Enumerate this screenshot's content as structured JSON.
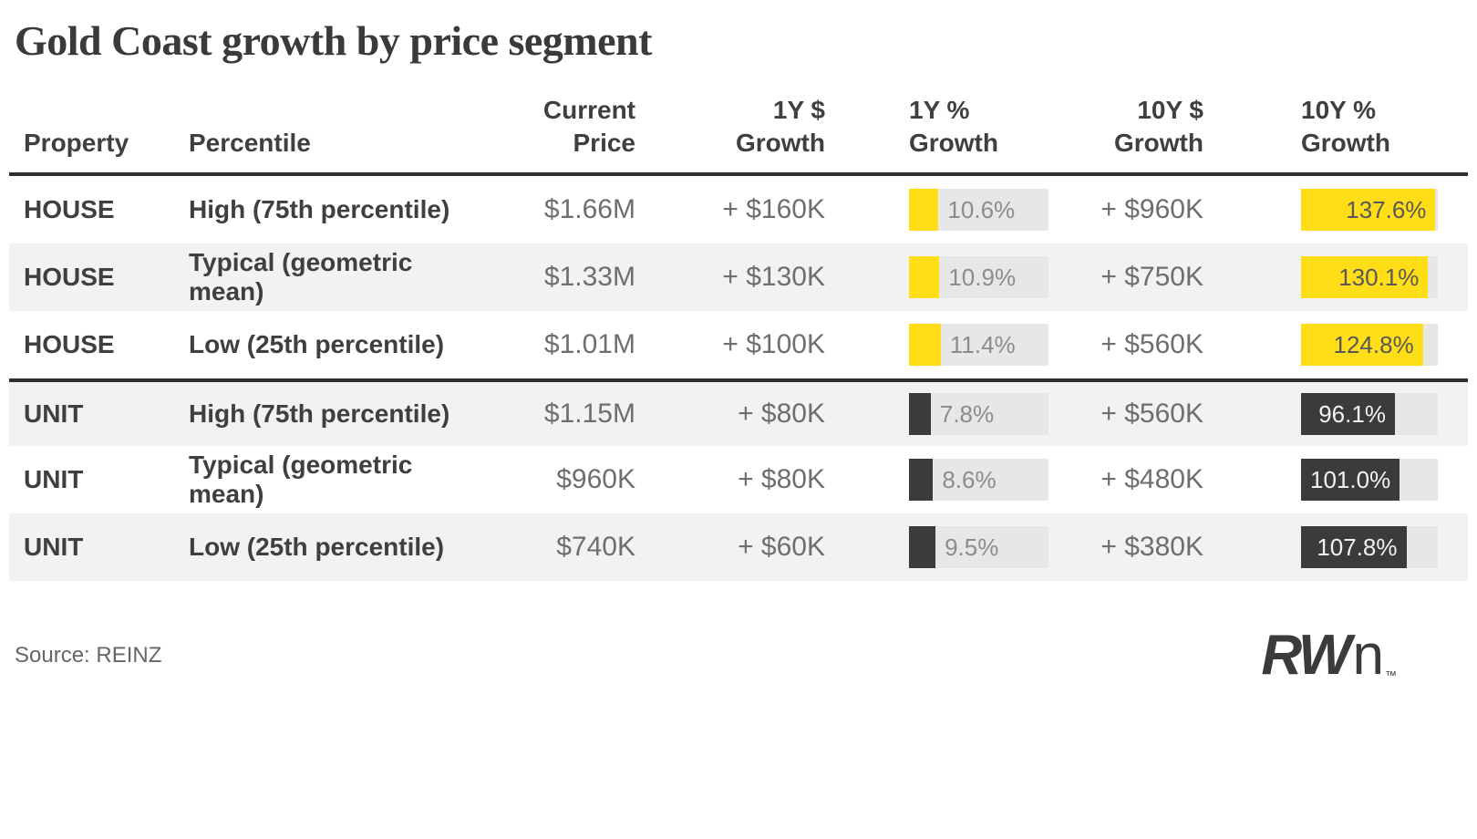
{
  "title": "Gold Coast growth by price segment",
  "source": "Source: REINZ",
  "logo": {
    "bold": "RW",
    "light": "n",
    "tm": "™"
  },
  "colors": {
    "house_bar": "#ffde17",
    "unit_bar": "#3b3b3c",
    "bar_track": "#e7e7e7",
    "row_shade": "#f2f2f2",
    "rule": "#2e2e2e"
  },
  "table": {
    "headers": [
      {
        "line1": "",
        "line2": "Property"
      },
      {
        "line1": "",
        "line2": "Percentile"
      },
      {
        "line1": "Current",
        "line2": "Price"
      },
      {
        "line1": "1Y $",
        "line2": "Growth"
      },
      {
        "line1": "1Y %",
        "line2": "Growth"
      },
      {
        "line1": "10Y $",
        "line2": "Growth"
      },
      {
        "line1": "10Y %",
        "line2": "Growth"
      }
    ],
    "bar_scales": {
      "y1_max": 50,
      "y10_max": 140
    },
    "rows": [
      {
        "property": "HOUSE",
        "percentile": "High (75th percentile)",
        "current_price": "$1.66M",
        "y1_dollar": "+ $160K",
        "y1_pct": 10.6,
        "y1_pct_label": "10.6%",
        "y10_dollar": "+ $960K",
        "y10_pct": 137.6,
        "y10_pct_label": "137.6%",
        "theme": "house"
      },
      {
        "property": "HOUSE",
        "percentile": "Typical (geometric mean)",
        "current_price": "$1.33M",
        "y1_dollar": "+ $130K",
        "y1_pct": 10.9,
        "y1_pct_label": "10.9%",
        "y10_dollar": "+ $750K",
        "y10_pct": 130.1,
        "y10_pct_label": "130.1%",
        "theme": "house"
      },
      {
        "property": "HOUSE",
        "percentile": "Low (25th percentile)",
        "current_price": "$1.01M",
        "y1_dollar": "+ $100K",
        "y1_pct": 11.4,
        "y1_pct_label": "11.4%",
        "y10_dollar": "+ $560K",
        "y10_pct": 124.8,
        "y10_pct_label": "124.8%",
        "theme": "house"
      },
      {
        "property": "UNIT",
        "percentile": "High (75th percentile)",
        "current_price": "$1.15M",
        "y1_dollar": "+ $80K",
        "y1_pct": 7.8,
        "y1_pct_label": "7.8%",
        "y10_dollar": "+ $560K",
        "y10_pct": 96.1,
        "y10_pct_label": "96.1%",
        "theme": "unit"
      },
      {
        "property": "UNIT",
        "percentile": "Typical (geometric mean)",
        "current_price": "$960K",
        "y1_dollar": "+ $80K",
        "y1_pct": 8.6,
        "y1_pct_label": "8.6%",
        "y10_dollar": "+ $480K",
        "y10_pct": 101.0,
        "y10_pct_label": "101.0%",
        "theme": "unit"
      },
      {
        "property": "UNIT",
        "percentile": "Low (25th percentile)",
        "current_price": "$740K",
        "y1_dollar": "+ $60K",
        "y1_pct": 9.5,
        "y1_pct_label": "9.5%",
        "y10_dollar": "+ $380K",
        "y10_pct": 107.8,
        "y10_pct_label": "107.8%",
        "theme": "unit"
      }
    ]
  },
  "chart_data": {
    "type": "table",
    "title": "Gold Coast growth by price segment",
    "columns": [
      "Property",
      "Percentile",
      "Current Price",
      "1Y $ Growth",
      "1Y % Growth",
      "10Y $ Growth",
      "10Y % Growth"
    ],
    "rows": [
      [
        "HOUSE",
        "High (75th percentile)",
        "$1.66M",
        "+ $160K",
        "10.6%",
        "+ $960K",
        "137.6%"
      ],
      [
        "HOUSE",
        "Typical (geometric mean)",
        "$1.33M",
        "+ $130K",
        "10.9%",
        "+ $750K",
        "130.1%"
      ],
      [
        "HOUSE",
        "Low (25th percentile)",
        "$1.01M",
        "+ $100K",
        "11.4%",
        "+ $560K",
        "124.8%"
      ],
      [
        "UNIT",
        "High (75th percentile)",
        "$1.15M",
        "+ $80K",
        "7.8%",
        "+ $560K",
        "96.1%"
      ],
      [
        "UNIT",
        "Typical (geometric mean)",
        "$960K",
        "+ $80K",
        "8.6%",
        "+ $480K",
        "101.0%"
      ],
      [
        "UNIT",
        "Low (25th percentile)",
        "$740K",
        "+ $60K",
        "9.5%",
        "+ $380K",
        "107.8%"
      ]
    ],
    "bar_columns": {
      "1Y % Growth": {
        "values": [
          10.6,
          10.9,
          11.4,
          7.8,
          8.6,
          9.5
        ],
        "axis_max": 50
      },
      "10Y % Growth": {
        "values": [
          137.6,
          130.1,
          124.8,
          96.1,
          101.0,
          107.8
        ],
        "axis_max": 140
      }
    },
    "series_groups": [
      "HOUSE",
      "UNIT"
    ],
    "source": "Source: REINZ"
  }
}
